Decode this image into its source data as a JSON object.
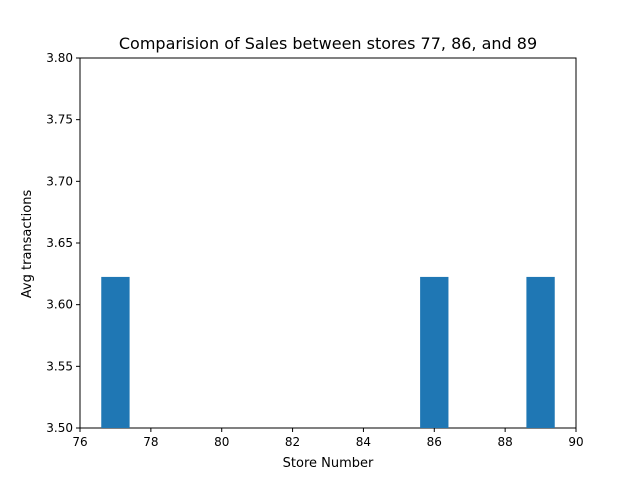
{
  "chart_data": {
    "type": "bar",
    "title": "Comparision of Sales between stores 77, 86, and 89",
    "xlabel": "Store Number",
    "ylabel": "Avg transactions",
    "x": [
      77,
      86,
      89
    ],
    "values": [
      3.6225,
      3.6225,
      3.6225
    ],
    "bar_width": 0.8,
    "xlim": [
      76,
      90
    ],
    "ylim": [
      3.5,
      3.8
    ],
    "xticks": [
      76,
      78,
      80,
      82,
      84,
      86,
      88,
      90
    ],
    "yticks": [
      3.5,
      3.55,
      3.6,
      3.65,
      3.7,
      3.75,
      3.8
    ],
    "xtick_labels": [
      "76",
      "78",
      "80",
      "82",
      "84",
      "86",
      "88",
      "90"
    ],
    "ytick_labels": [
      "3.50",
      "3.55",
      "3.60",
      "3.65",
      "3.70",
      "3.75",
      "3.80"
    ],
    "bar_color": "#1f77b4",
    "grid": false,
    "legend": "none"
  }
}
